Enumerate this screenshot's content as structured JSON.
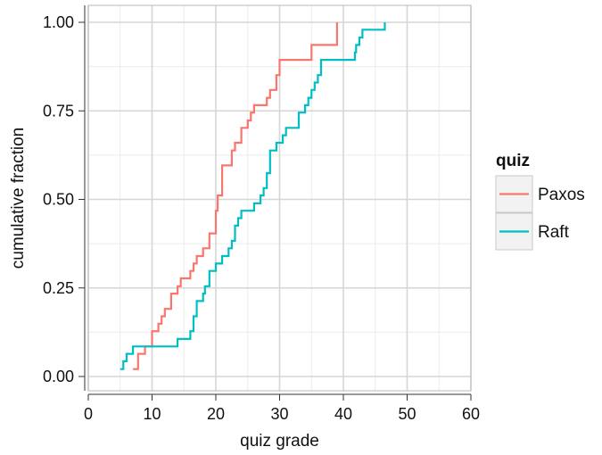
{
  "chart_data": {
    "type": "line",
    "subtype": "empirical-cumulative-step",
    "title": "",
    "xlabel": "quiz grade",
    "ylabel": "cumulative fraction",
    "xlim": [
      0,
      60
    ],
    "ylim": [
      0,
      1
    ],
    "x_ticks": [
      "0",
      "10",
      "20",
      "30",
      "40",
      "50",
      "60"
    ],
    "y_ticks": [
      "0.00",
      "0.25",
      "0.50",
      "0.75",
      "1.00"
    ],
    "grid": true,
    "legend": {
      "title": "quiz",
      "position": "right"
    },
    "series": [
      {
        "name": "Paxos",
        "color": "#F8766D",
        "points": [
          [
            7.0,
            0.021
          ],
          [
            7.8,
            0.064
          ],
          [
            8.9,
            0.085
          ],
          [
            10.0,
            0.128
          ],
          [
            11.0,
            0.149
          ],
          [
            11.5,
            0.17
          ],
          [
            12.0,
            0.191
          ],
          [
            13.0,
            0.234
          ],
          [
            14.0,
            0.255
          ],
          [
            14.5,
            0.277
          ],
          [
            16.0,
            0.298
          ],
          [
            16.5,
            0.319
          ],
          [
            17.0,
            0.34
          ],
          [
            18.0,
            0.362
          ],
          [
            19.0,
            0.404
          ],
          [
            20.0,
            0.468
          ],
          [
            20.3,
            0.511
          ],
          [
            21.0,
            0.596
          ],
          [
            22.5,
            0.638
          ],
          [
            23.0,
            0.66
          ],
          [
            24.0,
            0.702
          ],
          [
            25.0,
            0.723
          ],
          [
            25.5,
            0.745
          ],
          [
            26.0,
            0.766
          ],
          [
            28.0,
            0.787
          ],
          [
            28.5,
            0.809
          ],
          [
            29.5,
            0.851
          ],
          [
            30.0,
            0.894
          ],
          [
            35.0,
            0.936
          ],
          [
            39.0,
            1.0
          ]
        ]
      },
      {
        "name": "Raft",
        "color": "#00BFC4",
        "points": [
          [
            5.0,
            0.021
          ],
          [
            5.5,
            0.043
          ],
          [
            6.0,
            0.064
          ],
          [
            7.0,
            0.085
          ],
          [
            11.0,
            0.085
          ],
          [
            14.0,
            0.106
          ],
          [
            16.0,
            0.128
          ],
          [
            16.5,
            0.17
          ],
          [
            17.0,
            0.213
          ],
          [
            18.0,
            0.234
          ],
          [
            18.3,
            0.255
          ],
          [
            19.0,
            0.298
          ],
          [
            20.0,
            0.319
          ],
          [
            21.0,
            0.34
          ],
          [
            22.0,
            0.362
          ],
          [
            22.5,
            0.383
          ],
          [
            23.0,
            0.426
          ],
          [
            23.5,
            0.447
          ],
          [
            24.0,
            0.468
          ],
          [
            26.0,
            0.489
          ],
          [
            27.0,
            0.511
          ],
          [
            27.5,
            0.532
          ],
          [
            28.0,
            0.574
          ],
          [
            28.5,
            0.638
          ],
          [
            29.5,
            0.66
          ],
          [
            30.5,
            0.681
          ],
          [
            31.0,
            0.702
          ],
          [
            33.0,
            0.745
          ],
          [
            34.0,
            0.766
          ],
          [
            34.5,
            0.787
          ],
          [
            35.0,
            0.809
          ],
          [
            35.5,
            0.83
          ],
          [
            36.0,
            0.851
          ],
          [
            36.5,
            0.894
          ],
          [
            41.5,
            0.894
          ],
          [
            41.8,
            0.915
          ],
          [
            42.0,
            0.936
          ],
          [
            42.5,
            0.957
          ],
          [
            43.0,
            0.979
          ],
          [
            46.5,
            1.0
          ]
        ]
      }
    ]
  }
}
